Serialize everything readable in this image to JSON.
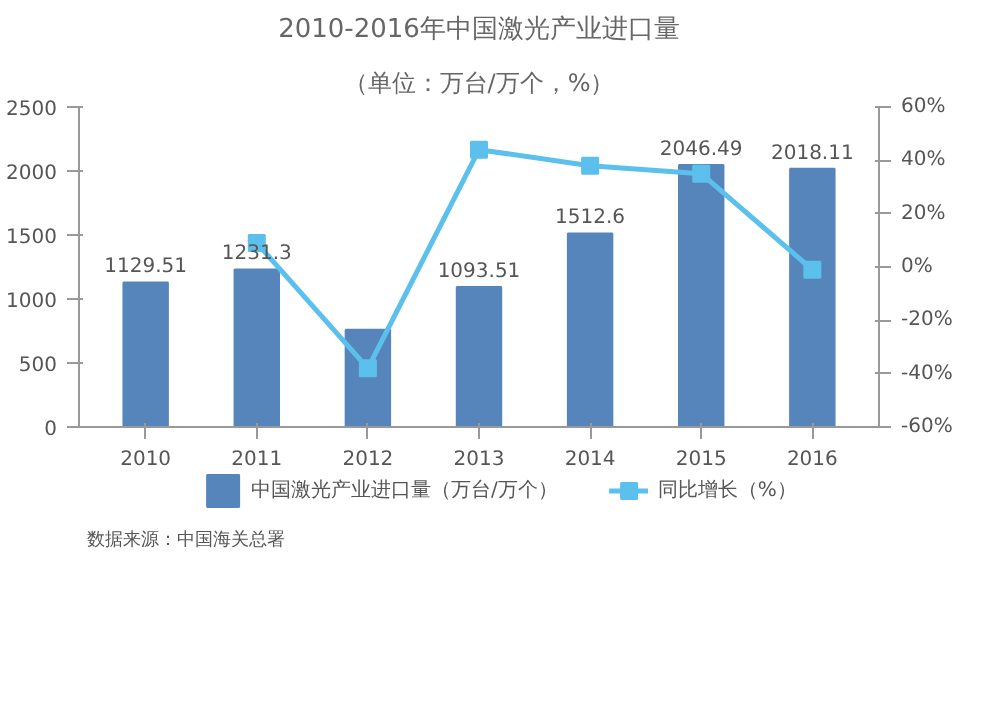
{
  "chart_data": {
    "type": "bar",
    "title": "2010-2016年中国激光产业进口量",
    "subtitle": "（单位：万台/万个，%）",
    "categories": [
      "2010",
      "2011",
      "2012",
      "2013",
      "2014",
      "2015",
      "2016"
    ],
    "series": [
      {
        "name": "中国激光产业进口量（万台/万个）",
        "color": "#5585bb",
        "values": [
          1129.51,
          1231.3,
          760,
          1093.51,
          1512.6,
          2046.49,
          2018.11
        ],
        "value_labels": [
          "1129.51",
          "1231.3",
          null,
          "1093.51",
          "1512.6",
          "2046.49",
          "2018.11"
        ]
      },
      {
        "name": "同比增长（%）",
        "type": "line",
        "axis": "y2",
        "color": "#5bc0eb",
        "marker": "square",
        "values": [
          null,
          9,
          -38,
          44,
          38,
          35,
          -1
        ]
      }
    ],
    "ylim": [
      0,
      2500
    ],
    "yticks": [
      0,
      500,
      1000,
      1500,
      2000,
      2500
    ],
    "y2lim": [
      -60,
      60
    ],
    "y2ticks": [
      {
        "value": -60,
        "label": "-60%"
      },
      {
        "value": -40,
        "label": "-40%"
      },
      {
        "value": -20,
        "label": "-20%"
      },
      {
        "value": 0,
        "label": "0%"
      },
      {
        "value": 20,
        "label": "20%"
      },
      {
        "value": 40,
        "label": "40%"
      },
      {
        "value": 60,
        "label": "60%"
      }
    ],
    "grid": false,
    "legend": "bottom",
    "annotations": [
      "数据来源：中国海关总署"
    ]
  }
}
